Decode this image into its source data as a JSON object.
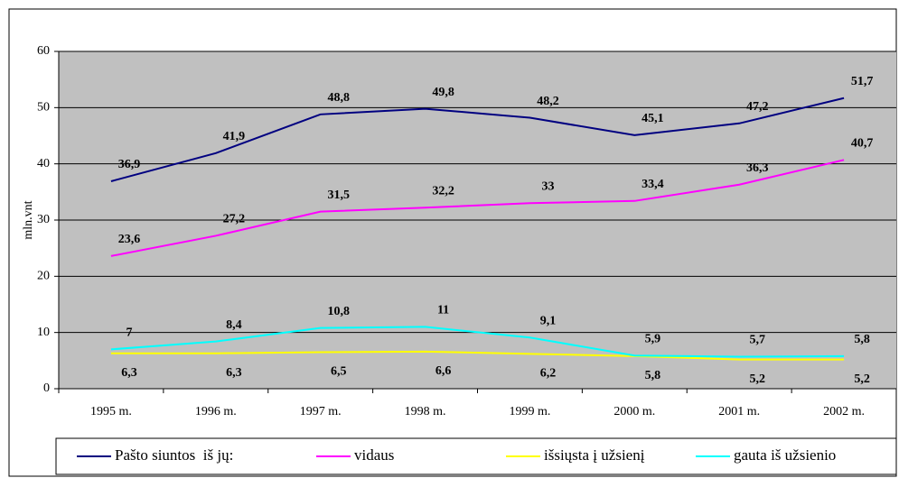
{
  "chart_data": {
    "type": "line",
    "categories": [
      "1995 m.",
      "1996 m.",
      "1997 m.",
      "1998 m.",
      "1999 m.",
      "2000 m.",
      "2001 m.",
      "2002 m."
    ],
    "y_axis_label": "mln.vnt",
    "ylim": [
      0,
      60
    ],
    "yticks": [
      0,
      10,
      20,
      30,
      40,
      50,
      60
    ],
    "grid": true,
    "legend": "bottom",
    "series": [
      {
        "name": "Pašto siuntos  iš jų:",
        "color": "#000080",
        "values": [
          36.9,
          41.9,
          48.8,
          49.8,
          48.2,
          45.1,
          47.2,
          51.7
        ],
        "value_labels": [
          "36,9",
          "41,9",
          "48,8",
          "49,8",
          "48,2",
          "45,1",
          "47,2",
          "51,7"
        ]
      },
      {
        "name": "vidaus",
        "color": "#ff00ff",
        "values": [
          23.6,
          27.2,
          31.5,
          32.2,
          33,
          33.4,
          36.3,
          40.7
        ],
        "value_labels": [
          "23,6",
          "27,2",
          "31,5",
          "32,2",
          "33",
          "33,4",
          "36,3",
          "40,7"
        ]
      },
      {
        "name": "išsiųsta į užsienį",
        "color": "#ffff00",
        "values": [
          6.3,
          6.3,
          6.5,
          6.6,
          6.2,
          5.8,
          5.2,
          5.2
        ],
        "value_labels": [
          "6,3",
          "6,3",
          "6,5",
          "6,6",
          "6,2",
          "5,8",
          "5,2",
          "5,2"
        ]
      },
      {
        "name": "gauta iš užsienio",
        "color": "#00ffff",
        "values": [
          7,
          8.4,
          10.8,
          11,
          9.1,
          5.9,
          5.7,
          5.8
        ],
        "value_labels": [
          "7",
          "8,4",
          "10,8",
          "11",
          "9,1",
          "5,9",
          "5,7",
          "5,8"
        ]
      }
    ]
  }
}
